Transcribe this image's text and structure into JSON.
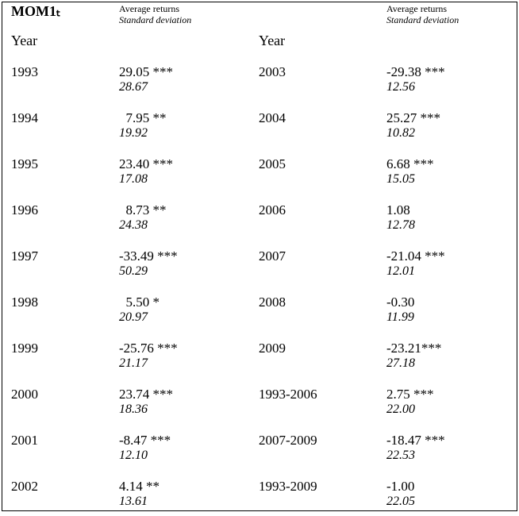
{
  "title": "MOM1ₜ",
  "headers": {
    "left": {
      "avg": "Average returns",
      "sd": "Standard deviation"
    },
    "right": {
      "avg": "Average returns",
      "sd": "Standard deviation"
    }
  },
  "year_label_left": "Year",
  "year_label_right": "Year",
  "rows": [
    {
      "y1": "1993",
      "r1": "29.05 ***",
      "s1": "28.67",
      "y2": "2003",
      "r2": "-29.38 ***",
      "s2": "12.56"
    },
    {
      "y1": "1994",
      "r1": "  7.95 **",
      "s1": "19.92",
      "y2": "2004",
      "r2": "25.27 ***",
      "s2": "10.82"
    },
    {
      "y1": "1995",
      "r1": "23.40 ***",
      "s1": "17.08",
      "y2": "2005",
      "r2": "6.68 ***",
      "s2": "15.05"
    },
    {
      "y1": "1996",
      "r1": "  8.73 **",
      "s1": "24.38",
      "y2": "2006",
      "r2": "1.08",
      "s2": "12.78"
    },
    {
      "y1": "1997",
      "r1": "-33.49 ***",
      "s1": "50.29",
      "y2": "2007",
      "r2": "-21.04 ***",
      "s2": "12.01"
    },
    {
      "y1": "1998",
      "r1": "  5.50 *",
      "s1": "20.97",
      "y2": "2008",
      "r2": "-0.30",
      "s2": "11.99"
    },
    {
      "y1": "1999",
      "r1": "-25.76 ***",
      "s1": "21.17",
      "y2": "2009",
      "r2": "-23.21***",
      "s2": "27.18"
    },
    {
      "y1": "2000",
      "r1": "23.74 ***",
      "s1": "18.36",
      "y2": "1993-2006",
      "r2": "2.75 ***",
      "s2": "22.00"
    },
    {
      "y1": "2001",
      "r1": "-8.47 ***",
      "s1": "12.10",
      "y2": "2007-2009",
      "r2": "-18.47 ***",
      "s2": "22.53"
    },
    {
      "y1": "2002",
      "r1": "4.14 **",
      "s1": "13.61",
      "y2": "1993-2009",
      "r2": "-1.00",
      "s2": "22.05"
    }
  ]
}
